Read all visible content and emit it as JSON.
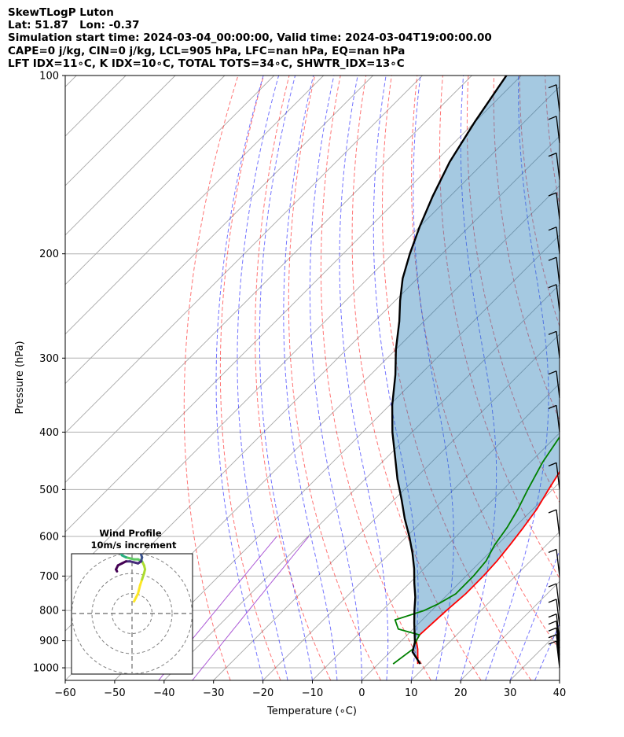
{
  "header": {
    "line1": "SkewTLogP Luton",
    "line2": "Lat: 51.87   Lon: -0.37",
    "line3": "Simulation start time: 2024-03-04_00:00:00, Valid time: 2024-03-04T19:00:00.00",
    "line4": "CAPE=0 j/kg, CIN=0 j/kg, LCL=905 hPa, LFC=nan hPa, EQ=nan hPa",
    "line5": "LFT IDX=11∘C, K IDX=10∘C, TOTAL TOTS=34∘C, SHWTR_IDX=13∘C"
  },
  "chart_data": {
    "type": "line",
    "subtype": "skew-t log-p",
    "xlabel": "Temperature (∘C)",
    "ylabel": "Pressure (hPa)",
    "xlim": [
      -60,
      40
    ],
    "ylim": [
      1050,
      100
    ],
    "y_scale": "log",
    "xticks": [
      "−60",
      "−50",
      "−40",
      "−30",
      "−20",
      "−10",
      "0",
      "10",
      "20",
      "30",
      "40"
    ],
    "yticks": [
      "100",
      "200",
      "300",
      "400",
      "500",
      "600",
      "700",
      "800",
      "900",
      "1000"
    ],
    "grid": true,
    "series": [
      {
        "name": "temperature",
        "color": "#ff0000",
        "points": [
          [
            8,
            985
          ],
          [
            5,
            930
          ],
          [
            3,
            900
          ],
          [
            2.5,
            880
          ],
          [
            3,
            800
          ],
          [
            3.5,
            750
          ],
          [
            3.5,
            700
          ],
          [
            3.2,
            660
          ],
          [
            2.6,
            620
          ],
          [
            1.8,
            580
          ],
          [
            0.8,
            540
          ],
          [
            -0.8,
            500
          ],
          [
            -2,
            470
          ],
          [
            -3.5,
            440
          ],
          [
            -5,
            410
          ],
          [
            -6.5,
            380
          ],
          [
            -8.5,
            350
          ],
          [
            -10.5,
            330
          ],
          [
            -12,
            310
          ],
          [
            -13.5,
            290
          ],
          [
            -15,
            275
          ],
          [
            -16.5,
            260
          ],
          [
            -18,
            250
          ],
          [
            -17,
            240
          ],
          [
            -15,
            232
          ],
          [
            -12,
            220
          ],
          [
            -10,
            208
          ],
          [
            -8,
            200
          ],
          [
            -6,
            193
          ],
          [
            -4,
            186
          ],
          [
            -1,
            178
          ],
          [
            0.5,
            172
          ],
          [
            2,
            166
          ],
          [
            4,
            160
          ],
          [
            6,
            152
          ],
          [
            7.5,
            148
          ],
          [
            8.5,
            143
          ],
          [
            9,
            138
          ],
          [
            9.5,
            133
          ],
          [
            10,
            130
          ],
          [
            10.6,
            125
          ],
          [
            11.5,
            120
          ],
          [
            12.5,
            115
          ],
          [
            13.5,
            110
          ],
          [
            14.5,
            105
          ],
          [
            15.3,
            100
          ]
        ]
      },
      {
        "name": "dewpoint",
        "color": "#008000",
        "points": [
          [
            3,
            985
          ],
          [
            4,
            930
          ],
          [
            3,
            900
          ],
          [
            2.5,
            880
          ],
          [
            -3,
            860
          ],
          [
            -5.5,
            830
          ],
          [
            -1.5,
            800
          ],
          [
            0,
            780
          ],
          [
            1.5,
            750
          ],
          [
            1.5,
            700
          ],
          [
            1,
            660
          ],
          [
            -0.5,
            620
          ],
          [
            -1.5,
            580
          ],
          [
            -3,
            540
          ],
          [
            -5,
            500
          ],
          [
            -7.5,
            450
          ],
          [
            -9.5,
            400
          ],
          [
            -12,
            370
          ],
          [
            -15,
            350
          ],
          [
            -18,
            330
          ],
          [
            -19,
            310
          ],
          [
            -20,
            290
          ],
          [
            -21,
            275
          ],
          [
            -22,
            258
          ],
          [
            -23,
            250
          ],
          [
            -22,
            240
          ],
          [
            -20,
            230
          ],
          [
            -19,
            222
          ],
          [
            -18.5,
            210
          ],
          [
            -19,
            200
          ],
          [
            -19.5,
            190
          ],
          [
            -20,
            180
          ],
          [
            -17.5,
            170
          ],
          [
            -17,
            163
          ],
          [
            -16.5,
            158
          ],
          [
            -18.5,
            153
          ],
          [
            -20.5,
            148
          ],
          [
            -22,
            143
          ],
          [
            -21,
            136
          ],
          [
            -20,
            128
          ],
          [
            -18.5,
            120
          ],
          [
            -17,
            113
          ],
          [
            -15,
            105
          ],
          [
            -13.5,
            100
          ]
        ]
      },
      {
        "name": "parcel",
        "color": "#000000",
        "points": [
          [
            8.5,
            985
          ],
          [
            4.5,
            940
          ],
          [
            3,
            905
          ],
          [
            1.5,
            880
          ],
          [
            -1,
            840
          ],
          [
            -3.5,
            800
          ],
          [
            -6,
            760
          ],
          [
            -9,
            720
          ],
          [
            -12,
            680
          ],
          [
            -15.5,
            640
          ],
          [
            -19.5,
            600
          ],
          [
            -24,
            560
          ],
          [
            -28.5,
            520
          ],
          [
            -33.5,
            480
          ],
          [
            -38.5,
            440
          ],
          [
            -44,
            400
          ],
          [
            -49.5,
            360
          ],
          [
            -55,
            320
          ],
          [
            -60,
            290
          ],
          [
            -65,
            260
          ],
          [
            -69,
            240
          ],
          [
            -73,
            220
          ],
          [
            -76.5,
            200
          ],
          [
            -80,
            180
          ],
          [
            -83.5,
            160
          ],
          [
            -87,
            140
          ],
          [
            -90,
            120
          ],
          [
            -93,
            100
          ]
        ]
      }
    ],
    "wind_barbs": {
      "color": "#000000",
      "levels_hpa": [
        1000,
        975,
        950,
        925,
        900,
        850,
        800,
        700,
        600,
        500,
        400,
        350,
        300,
        250,
        225,
        200,
        175,
        150,
        130,
        115
      ]
    },
    "hodograph": {
      "title": "Wind Profile",
      "subtitle": "10m/s increment",
      "ring_speeds": [
        10,
        20,
        30
      ],
      "points": [
        [
          1,
          6
        ],
        [
          2,
          8
        ],
        [
          3,
          10
        ],
        [
          4,
          14
        ],
        [
          5,
          17
        ],
        [
          6,
          20
        ],
        [
          6.5,
          22
        ],
        [
          6,
          24
        ],
        [
          5,
          26
        ],
        [
          3,
          27
        ],
        [
          1,
          27
        ],
        [
          -1,
          27.5
        ],
        [
          -3,
          28
        ],
        [
          -5,
          29
        ],
        [
          -6,
          31
        ],
        [
          -7,
          33
        ],
        [
          -8,
          35
        ],
        [
          -8.5,
          38
        ],
        [
          -9,
          40
        ],
        [
          -8,
          41
        ],
        [
          -6,
          40
        ],
        [
          -4,
          39
        ],
        [
          -2,
          38
        ],
        [
          0,
          37
        ],
        [
          2,
          36
        ],
        [
          3,
          34
        ],
        [
          4,
          31
        ],
        [
          5,
          28
        ],
        [
          4.5,
          26
        ],
        [
          3,
          25
        ],
        [
          1,
          25.5
        ],
        [
          -1,
          26
        ],
        [
          -3,
          26
        ],
        [
          -5,
          25
        ],
        [
          -7,
          24
        ],
        [
          -8,
          22
        ],
        [
          -7.5,
          21
        ]
      ]
    }
  }
}
